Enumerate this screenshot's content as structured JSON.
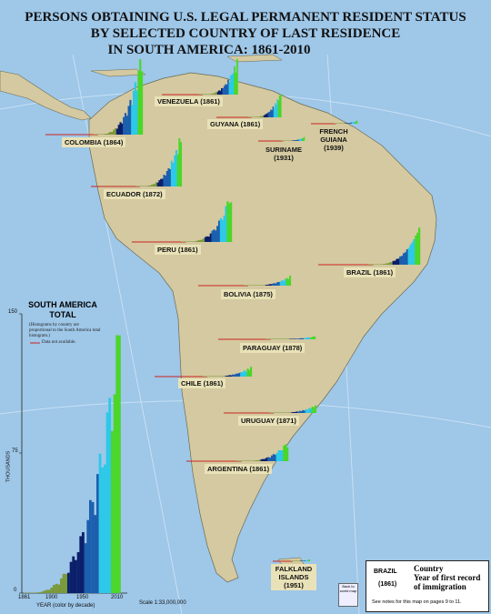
{
  "title": {
    "line1": "PERSONS OBTAINING U.S. LEGAL PERMANENT RESIDENT STATUS",
    "line2": "BY SELECTED COUNTRY OF LAST RESIDENCE",
    "line3": "IN SOUTH AMERICA: 1861-2010"
  },
  "countries": [
    {
      "name": "VENEZUELA (1861)"
    },
    {
      "name": "COLOMBIA (1864)"
    },
    {
      "name": "GUYANA (1861)"
    },
    {
      "name": "SURINAME",
      "year": "(1931)"
    },
    {
      "name": "FRENCH",
      "name2": "GUIANA",
      "year": "(1939)"
    },
    {
      "name": "ECUADOR (1872)"
    },
    {
      "name": "PERU (1861)"
    },
    {
      "name": "BRAZIL (1861)"
    },
    {
      "name": "BOLIVIA (1875)"
    },
    {
      "name": "PARAGUAY (1878)"
    },
    {
      "name": "CHILE (1861)"
    },
    {
      "name": "URUGUAY (1871)"
    },
    {
      "name": "ARGENTINA (1861)"
    },
    {
      "name": "FALKLAND",
      "name2": "ISLANDS",
      "year": "(1951)"
    }
  ],
  "total_chart": {
    "title1": "SOUTH AMERICA",
    "title2": "TOTAL",
    "note": "(Histograms by country are proportional to the South America total histogram.)",
    "na_note": "Data not available.",
    "y_ticks": [
      "150",
      "75",
      "0"
    ],
    "y_label": "THOUSANDS",
    "x_ticks": [
      "1861",
      "1900",
      "1950",
      "2010"
    ],
    "x_label": "YEAR (color by decade)"
  },
  "scale": "Scale 1:33,000,000",
  "back_link": "Back to world map",
  "legend": {
    "country": "BRAZIL",
    "year": "(1861)",
    "label1": "Country",
    "label2": "Year of first record",
    "label3": "of immigration",
    "note": "See notes for this map on pages 9 to 11."
  },
  "colors": {
    "ocean": "#9ec7e8",
    "land": "#d4c9a0",
    "early": "#7a9a3a",
    "mid": "#0b1f6b",
    "late": "#2ec8e8",
    "recent": "#4bd62a",
    "na_line": "#cc2222"
  }
}
